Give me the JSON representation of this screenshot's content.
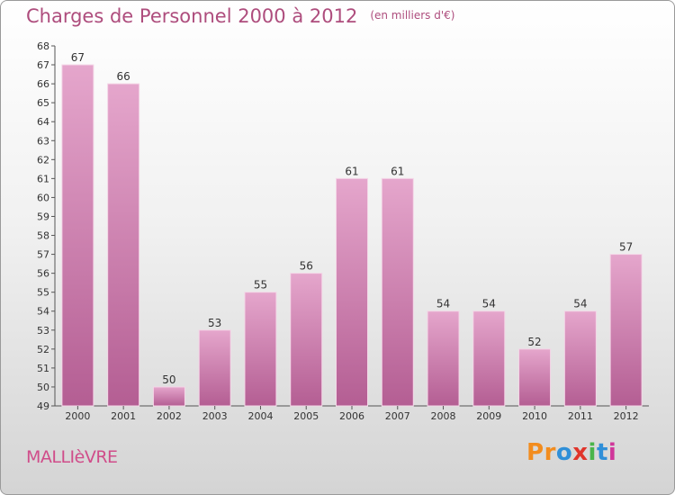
{
  "title": "Charges de Personnel 2000 à 2012",
  "subtitle": "(en milliers d'€)",
  "city": "MALLIèVRE",
  "logo": {
    "letters": [
      "P",
      "r",
      "o",
      "x",
      "i",
      "t",
      "i"
    ],
    "colors": [
      "#f28c1e",
      "#f28c1e",
      "#2f8fd8",
      "#e0352b",
      "#4ab54a",
      "#2f8fd8",
      "#d0369a"
    ]
  },
  "colors": {
    "bar": "#e5a6cc",
    "bar_dark": "#b45e93",
    "title": "#ae4d7d"
  },
  "chart_data": {
    "type": "bar",
    "categories": [
      "2000",
      "2001",
      "2002",
      "2003",
      "2004",
      "2005",
      "2006",
      "2007",
      "2008",
      "2009",
      "2010",
      "2011",
      "2012"
    ],
    "values": [
      67,
      66,
      50,
      53,
      55,
      56,
      61,
      61,
      54,
      54,
      52,
      54,
      57
    ],
    "title": "Charges de Personnel 2000 à 2012",
    "subtitle": "(en milliers d'€)",
    "ylim": [
      49,
      68
    ],
    "yticks": [
      49,
      50,
      51,
      52,
      53,
      54,
      55,
      56,
      57,
      58,
      59,
      60,
      61,
      62,
      63,
      64,
      65,
      66,
      67,
      68
    ],
    "grid": false,
    "data_labels": true
  }
}
